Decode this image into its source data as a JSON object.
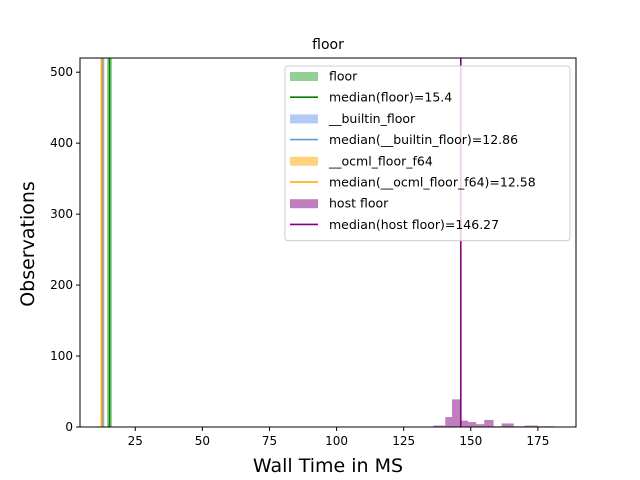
{
  "chart_data": {
    "type": "histogram",
    "title": "floor",
    "xlabel": "Wall Time in MS",
    "ylabel": "Observations",
    "xlim": [
      4.4,
      189.2
    ],
    "ylim": [
      0,
      520
    ],
    "xticks": [
      25,
      50,
      75,
      100,
      125,
      150,
      175
    ],
    "yticks": [
      0,
      100,
      200,
      300,
      400,
      500
    ],
    "legend_position": "upper right",
    "series": [
      {
        "name": "floor",
        "kind": "hist",
        "color": "#2ca02c",
        "bins": [
          [
            14.5,
            16.3,
            519
          ]
        ]
      },
      {
        "name": "median(floor)=15.4",
        "kind": "vline",
        "value": 15.4,
        "color": "#008000"
      },
      {
        "name": "__builtin_floor",
        "kind": "hist",
        "color": "#6495ed",
        "bins": [
          [
            12.2,
            13.5,
            519
          ]
        ]
      },
      {
        "name": "median(__builtin_floor)=12.86",
        "kind": "vline",
        "value": 12.86,
        "color": "#6495ed"
      },
      {
        "name": "__ocml_floor_f64",
        "kind": "hist",
        "color": "#ffa500",
        "bins": [
          [
            12.0,
            13.2,
            519
          ]
        ]
      },
      {
        "name": "median(__ocml_floor_f64)=12.58",
        "kind": "vline",
        "value": 12.58,
        "color": "#ffa500"
      },
      {
        "name": "host floor",
        "kind": "hist",
        "color": "#800080",
        "bins": [
          [
            136.0,
            140.5,
            2
          ],
          [
            140.5,
            143.0,
            14
          ],
          [
            143.0,
            146.0,
            39
          ],
          [
            146.0,
            149.0,
            9
          ],
          [
            149.0,
            152.0,
            7
          ],
          [
            152.0,
            155.0,
            4
          ],
          [
            155.0,
            158.5,
            10
          ],
          [
            158.5,
            161.5,
            1
          ],
          [
            161.5,
            166.0,
            5
          ],
          [
            166.0,
            170.0,
            1
          ],
          [
            170.0,
            175.0,
            2
          ],
          [
            175.0,
            181.0,
            1
          ]
        ]
      },
      {
        "name": "median(host floor)=146.27",
        "kind": "vline",
        "value": 146.27,
        "color": "#800080"
      }
    ]
  }
}
